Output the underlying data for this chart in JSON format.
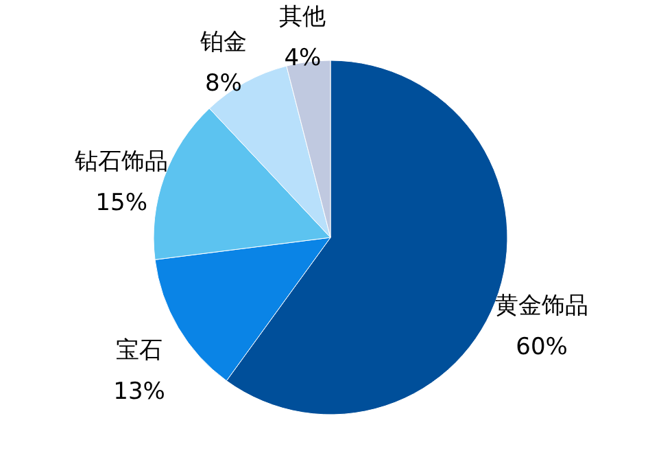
{
  "chart_data": {
    "type": "pie",
    "categories": [
      "黄金饰品",
      "宝石",
      "钻石饰品",
      "铂金",
      "其他"
    ],
    "values": [
      60,
      13,
      15,
      8,
      4
    ],
    "value_labels": [
      "60%",
      "13%",
      "15%",
      "8%",
      "4%"
    ],
    "colors": [
      "#004f9a",
      "#0a84e6",
      "#5cc3f0",
      "#b8e0fb",
      "#c0c9e0"
    ]
  }
}
